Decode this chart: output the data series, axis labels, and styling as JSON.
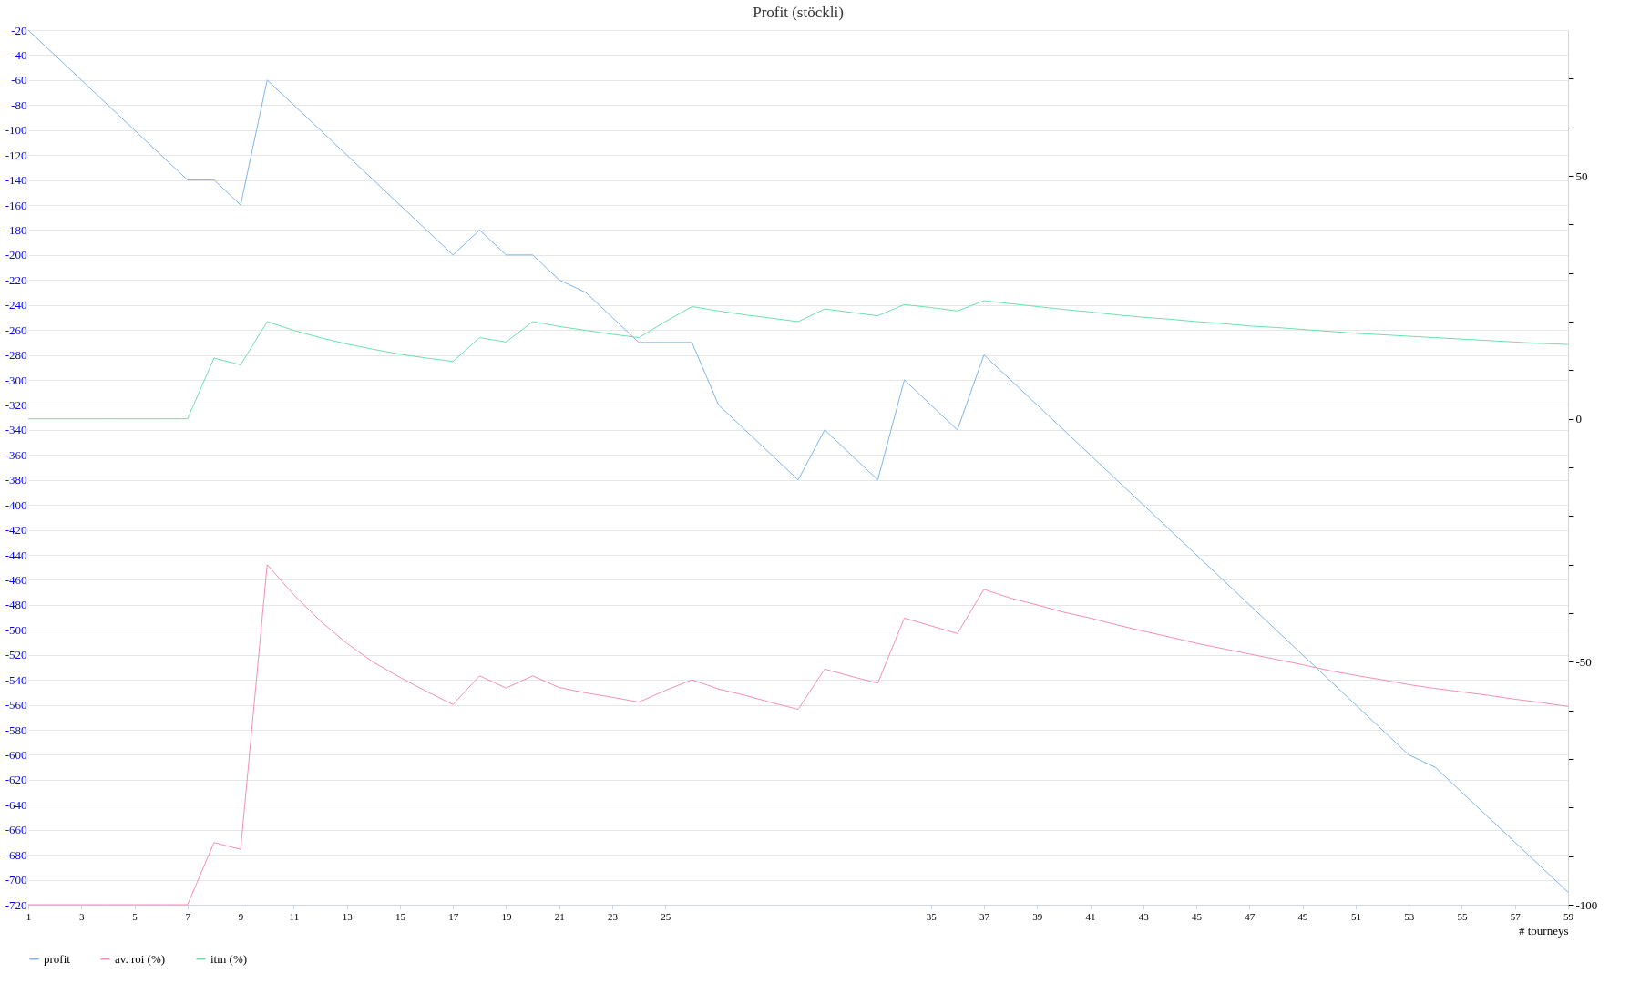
{
  "chart_data": {
    "type": "line",
    "title": "Profit  (stöckli)",
    "xlabel": "# tourneys",
    "x": [
      1,
      2,
      3,
      4,
      5,
      6,
      7,
      8,
      9,
      10,
      11,
      12,
      13,
      14,
      15,
      16,
      17,
      18,
      19,
      20,
      21,
      22,
      23,
      24,
      25,
      26,
      27,
      28,
      29,
      30,
      31,
      32,
      33,
      34,
      35,
      36,
      37,
      38,
      39,
      40,
      41,
      42,
      43,
      44,
      45,
      46,
      47,
      48,
      49,
      50,
      51,
      52,
      53,
      54,
      55,
      56,
      57,
      58,
      59
    ],
    "series": [
      {
        "name": "profit",
        "color": "#7cb5ec",
        "values": [
          -20,
          -40,
          -60,
          -80,
          -100,
          -120,
          -140,
          -140,
          -160,
          -60,
          -80,
          -100,
          -120,
          -140,
          -160,
          -180,
          -200,
          -180,
          -200,
          -200,
          -220,
          -230,
          -250,
          -270,
          -270,
          -270,
          -320,
          -340,
          -360,
          -380,
          -340,
          -360,
          -380,
          -300,
          -320,
          -340,
          -280,
          -300,
          -320,
          -340,
          -360,
          -380,
          -400,
          -420,
          -440,
          -460,
          -480,
          -500,
          -520,
          -540,
          -560,
          -580,
          -600,
          -610,
          -630,
          -650,
          -670,
          -690,
          -710
        ]
      },
      {
        "name": "av. roi (%)",
        "color": "#f28fb8",
        "axis": "y2",
        "values": [
          -100,
          -100,
          -100,
          -100,
          -100,
          -100,
          -100,
          -87.2,
          -88.6,
          -30.0,
          -36.2,
          -41.6,
          -46.2,
          -50.1,
          -53.2,
          -56.1,
          -58.8,
          -52.9,
          -55.4,
          -52.9,
          -55.3,
          -56.4,
          -57.3,
          -58.3,
          -55.9,
          -53.7,
          -55.6,
          -56.9,
          -58.4,
          -59.8,
          -51.5,
          -53.0,
          -54.4,
          -41.0,
          -42.6,
          -44.2,
          -35.1,
          -36.9,
          -38.3,
          -39.8,
          -41.0,
          -42.4,
          -43.7,
          -44.9,
          -46.2,
          -47.3,
          -48.4,
          -49.5,
          -50.6,
          -51.8,
          -52.8,
          -53.7,
          -54.7,
          -55.5,
          -56.2,
          -56.9,
          -57.7,
          -58.4,
          -59.2
        ]
      },
      {
        "name": "itm (%)",
        "color": "#6ee0ad",
        "axis": "y2",
        "values": [
          0,
          0,
          0,
          0,
          0,
          0,
          0,
          12.5,
          11.1,
          20.0,
          18.2,
          16.7,
          15.4,
          14.3,
          13.3,
          12.5,
          11.8,
          16.7,
          15.8,
          20.0,
          19.0,
          18.2,
          17.4,
          16.7,
          20.0,
          23.1,
          22.2,
          21.4,
          20.7,
          20.0,
          22.6,
          21.9,
          21.2,
          23.5,
          22.9,
          22.2,
          24.3,
          23.7,
          23.1,
          22.5,
          22.0,
          21.4,
          20.9,
          20.5,
          20.0,
          19.6,
          19.1,
          18.8,
          18.4,
          18.0,
          17.6,
          17.3,
          17.0,
          16.7,
          16.4,
          16.1,
          15.8,
          15.5,
          15.3
        ]
      }
    ],
    "xlim": [
      1,
      59
    ],
    "xticks": [
      1,
      3,
      5,
      7,
      9,
      11,
      13,
      15,
      17,
      19,
      21,
      23,
      25,
      35,
      37,
      39,
      41,
      43,
      45,
      47,
      49,
      51,
      53,
      55,
      57,
      59
    ],
    "ylim": [
      -720,
      -20
    ],
    "yticks": [
      -720,
      -700,
      -680,
      -660,
      -640,
      -620,
      -600,
      -580,
      -560,
      -540,
      -520,
      -500,
      -480,
      -460,
      -440,
      -420,
      -400,
      -380,
      -360,
      -340,
      -320,
      -300,
      -280,
      -260,
      -240,
      -220,
      -200,
      -180,
      -160,
      -140,
      -120,
      -100,
      -80,
      -60,
      -40,
      -20
    ],
    "y2lim": [
      -100,
      80
    ],
    "y2ticks": [
      -100,
      {
        "value": -90,
        "label": null
      },
      {
        "value": -80,
        "label": null
      },
      {
        "value": -70,
        "label": null
      },
      {
        "value": -60,
        "label": null
      },
      -50,
      {
        "value": -40,
        "label": null
      },
      {
        "value": -30,
        "label": null
      },
      {
        "value": -20,
        "label": null
      },
      {
        "value": -10,
        "label": null
      },
      0,
      {
        "value": 10,
        "label": null
      },
      {
        "value": 20,
        "label": null
      },
      {
        "value": 30,
        "label": null
      },
      {
        "value": 40,
        "label": null
      },
      50,
      {
        "value": 60,
        "label": null
      },
      {
        "value": 70,
        "label": null
      }
    ],
    "grid": "y",
    "legend": "bottom",
    "marker": "none",
    "line_style": "solid"
  }
}
